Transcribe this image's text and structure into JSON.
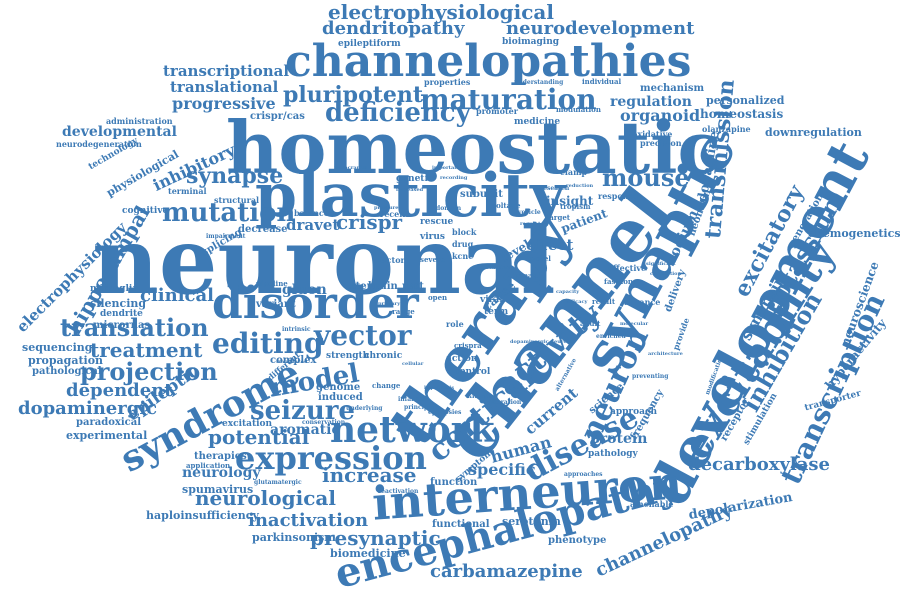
{
  "colors": {
    "word": "#3d7ab5",
    "background": "#ffffff"
  },
  "words": [
    {
      "text": "neuronal",
      "weight": 100,
      "rotation": 0
    },
    {
      "text": "homeostatic",
      "weight": 82,
      "rotation": 0
    },
    {
      "text": "plasticity",
      "weight": 72,
      "rotation": 0
    },
    {
      "text": "channel",
      "weight": 80,
      "rotation": -55
    },
    {
      "text": "therapy",
      "weight": 72,
      "rotation": -55
    },
    {
      "text": "synaptic",
      "weight": 68,
      "rotation": -60
    },
    {
      "text": "development",
      "weight": 66,
      "rotation": -62
    },
    {
      "text": "channelopathies",
      "weight": 58,
      "rotation": 0
    },
    {
      "text": "disorder",
      "weight": 52,
      "rotation": 0
    },
    {
      "text": "interneuron",
      "weight": 50,
      "rotation": -5
    },
    {
      "text": "excitability",
      "weight": 48,
      "rotation": -58
    },
    {
      "text": "encephalopathy",
      "weight": 46,
      "rotation": -15
    },
    {
      "text": "syndrome",
      "weight": 42,
      "rotation": -28
    },
    {
      "text": "network",
      "weight": 42,
      "rotation": 0
    },
    {
      "text": "cortical",
      "weight": 36,
      "rotation": -40
    },
    {
      "text": "activity",
      "weight": 34,
      "rotation": -40
    },
    {
      "text": "neuron",
      "weight": 36,
      "rotation": -65
    },
    {
      "text": "expression",
      "weight": 36,
      "rotation": 0
    },
    {
      "text": "disease",
      "weight": 34,
      "rotation": -30
    },
    {
      "text": "maturation",
      "weight": 32,
      "rotation": 0
    },
    {
      "text": "transcription",
      "weight": 30,
      "rotation": -65
    },
    {
      "text": "inhibition",
      "weight": 28,
      "rotation": -60
    },
    {
      "text": "potassium",
      "weight": 28,
      "rotation": -60
    },
    {
      "text": "excitatory",
      "weight": 26,
      "rotation": -62
    },
    {
      "text": "transmission",
      "weight": 26,
      "rotation": -85
    },
    {
      "text": "deficiency",
      "weight": 30,
      "rotation": 0
    },
    {
      "text": "pluripotent",
      "weight": 28,
      "rotation": 0
    },
    {
      "text": "electrophysiological",
      "weight": 24,
      "rotation": 0
    },
    {
      "text": "dendritopathy",
      "weight": 22,
      "rotation": 0
    },
    {
      "text": "neurodevelopment",
      "weight": 22,
      "rotation": 0
    },
    {
      "text": "mouse",
      "weight": 28,
      "rotation": 0
    },
    {
      "text": "synapse",
      "weight": 24,
      "rotation": 0
    },
    {
      "text": "mutation",
      "weight": 28,
      "rotation": 0
    },
    {
      "text": "translation",
      "weight": 26,
      "rotation": 0
    },
    {
      "text": "editing",
      "weight": 30,
      "rotation": 0
    },
    {
      "text": "vector",
      "weight": 30,
      "rotation": 0
    },
    {
      "text": "model",
      "weight": 30,
      "rotation": -10
    },
    {
      "text": "seizure",
      "weight": 30,
      "rotation": 0
    },
    {
      "text": "projection",
      "weight": 28,
      "rotation": 0
    },
    {
      "text": "treatment",
      "weight": 24,
      "rotation": 0
    },
    {
      "text": "potential",
      "weight": 24,
      "rotation": 0
    },
    {
      "text": "increase",
      "weight": 22,
      "rotation": 0
    },
    {
      "text": "neurological",
      "weight": 22,
      "rotation": 0
    },
    {
      "text": "inactivation",
      "weight": 20,
      "rotation": 0
    },
    {
      "text": "presynaptic",
      "weight": 24,
      "rotation": 0
    },
    {
      "text": "carbamazepine",
      "weight": 22,
      "rotation": 0
    },
    {
      "text": "decarboxylase",
      "weight": 22,
      "rotation": 0
    },
    {
      "text": "channelopathy",
      "weight": 20,
      "rotation": -25
    },
    {
      "text": "depolarization",
      "weight": 14,
      "rotation": -10
    },
    {
      "text": "hippocampal",
      "weight": 24,
      "rotation": -60
    },
    {
      "text": "electrophysiology",
      "weight": 18,
      "rotation": -45
    },
    {
      "text": "dopaminergic",
      "weight": 20,
      "rotation": 0
    },
    {
      "text": "dependent",
      "weight": 20,
      "rotation": 0
    },
    {
      "text": "epileptic",
      "weight": 20,
      "rotation": -35
    },
    {
      "text": "crispr",
      "weight": 22,
      "rotation": 0
    },
    {
      "text": "dravet",
      "weight": 18,
      "rotation": 0
    },
    {
      "text": "clinical",
      "weight": 18,
      "rotation": 0
    },
    {
      "text": "progressive",
      "weight": 18,
      "rotation": 0
    },
    {
      "text": "developmental",
      "weight": 16,
      "rotation": 0
    },
    {
      "text": "inhibitory",
      "weight": 18,
      "rotation": -25
    },
    {
      "text": "transcriptional",
      "weight": 16,
      "rotation": 0
    },
    {
      "text": "translational",
      "weight": 16,
      "rotation": 0
    },
    {
      "text": "organoid",
      "weight": 18,
      "rotation": 0
    },
    {
      "text": "regulation",
      "weight": 16,
      "rotation": 0
    },
    {
      "text": "homeostasis",
      "weight": 14,
      "rotation": 0
    },
    {
      "text": "personalized",
      "weight": 12,
      "rotation": 0
    },
    {
      "text": "downregulation",
      "weight": 12,
      "rotation": 0
    },
    {
      "text": "chemogenetics",
      "weight": 12,
      "rotation": 0
    },
    {
      "text": "neuroscience",
      "weight": 14,
      "rotation": -70
    },
    {
      "text": "hyperactivity",
      "weight": 14,
      "rotation": -50
    },
    {
      "text": "synapsin",
      "weight": 18,
      "rotation": -60
    },
    {
      "text": "sodium",
      "weight": 16,
      "rotation": -65
    },
    {
      "text": "dopamine",
      "weight": 16,
      "rotation": -80
    },
    {
      "text": "human",
      "weight": 18,
      "rotation": -15
    },
    {
      "text": "protein",
      "weight": 18,
      "rotation": 0
    },
    {
      "text": "specific",
      "weight": 18,
      "rotation": 0
    },
    {
      "text": "current",
      "weight": 18,
      "rotation": -40
    },
    {
      "text": "effect",
      "weight": 18,
      "rotation": 0
    },
    {
      "text": "gluon",
      "weight": 16,
      "rotation": 0
    },
    {
      "text": "aromatic",
      "weight": 16,
      "rotation": 0
    },
    {
      "text": "neurology",
      "weight": 16,
      "rotation": 0
    },
    {
      "text": "serotonin",
      "weight": 12,
      "rotation": 0
    },
    {
      "text": "phenotype",
      "weight": 11,
      "rotation": 0
    },
    {
      "text": "parkinsonism",
      "weight": 12,
      "rotation": 0
    },
    {
      "text": "haploinsufficiency",
      "weight": 12,
      "rotation": 0
    },
    {
      "text": "biomedicine",
      "weight": 12,
      "rotation": 0
    },
    {
      "text": "spumavirus",
      "weight": 12,
      "rotation": 0
    },
    {
      "text": "experimental",
      "weight": 12,
      "rotation": 0
    },
    {
      "text": "paradoxical",
      "weight": 11,
      "rotation": 0
    },
    {
      "text": "pathological",
      "weight": 11,
      "rotation": 0
    },
    {
      "text": "propagation",
      "weight": 12,
      "rotation": 0
    },
    {
      "text": "sequencing",
      "weight": 12,
      "rotation": 0
    },
    {
      "text": "silencing",
      "weight": 12,
      "rotation": 0
    },
    {
      "text": "micrornas",
      "weight": 11,
      "rotation": 0
    },
    {
      "text": "microglia",
      "weight": 10,
      "rotation": 0
    },
    {
      "text": "dendrite",
      "weight": 10,
      "rotation": 0
    },
    {
      "text": "cognitive",
      "weight": 10,
      "rotation": 0
    },
    {
      "text": "splicing",
      "weight": 12,
      "rotation": -30
    },
    {
      "text": "physiological",
      "weight": 13,
      "rotation": -30
    },
    {
      "text": "technology",
      "weight": 11,
      "rotation": -30
    },
    {
      "text": "neurodegeneration",
      "weight": 9,
      "rotation": 0
    },
    {
      "text": "administration",
      "weight": 9,
      "rotation": 0
    },
    {
      "text": "crispr/cas",
      "weight": 12,
      "rotation": 0
    },
    {
      "text": "epileptiform",
      "weight": 10,
      "rotation": 0
    },
    {
      "text": "bioimaging",
      "weight": 10,
      "rotation": 0
    },
    {
      "text": "mechanism",
      "weight": 11,
      "rotation": 0
    },
    {
      "text": "olanzapine",
      "weight": 9,
      "rotation": 0
    },
    {
      "text": "insight",
      "weight": 14,
      "rotation": 0
    },
    {
      "text": "patient",
      "weight": 14,
      "rotation": -20
    },
    {
      "text": "rescue",
      "weight": 11,
      "rotation": 0
    },
    {
      "text": "brain",
      "weight": 12,
      "rotation": 0
    },
    {
      "text": "stem",
      "weight": 12,
      "rotation": 0
    },
    {
      "text": "rest",
      "weight": 12,
      "rotation": 0
    },
    {
      "text": "cause",
      "weight": 14,
      "rotation": -40
    },
    {
      "text": "virus",
      "weight": 11,
      "rotation": 0
    },
    {
      "text": "level",
      "weight": 14,
      "rotation": -30
    },
    {
      "text": "variant",
      "weight": 12,
      "rotation": 0
    },
    {
      "text": "complex",
      "weight": 12,
      "rotation": 0
    },
    {
      "text": "genome",
      "weight": 12,
      "rotation": 0
    },
    {
      "text": "induced",
      "weight": 12,
      "rotation": 0
    },
    {
      "text": "strength",
      "weight": 10,
      "rotation": 0
    },
    {
      "text": "chronic",
      "weight": 10,
      "rotation": 0
    },
    {
      "text": "excitation",
      "weight": 10,
      "rotation": 0
    },
    {
      "text": "therapies",
      "weight": 11,
      "rotation": 0
    },
    {
      "text": "function",
      "weight": 11,
      "rotation": 0
    },
    {
      "text": "functional",
      "weight": 11,
      "rotation": 0
    },
    {
      "text": "symptom",
      "weight": 10,
      "rotation": -40
    },
    {
      "text": "pathology",
      "weight": 10,
      "rotation": 0
    },
    {
      "text": "amenable",
      "weight": 9,
      "rotation": 0
    },
    {
      "text": "approach",
      "weight": 10,
      "rotation": 0
    },
    {
      "text": "frequency",
      "weight": 12,
      "rotation": -60
    },
    {
      "text": "receptor",
      "weight": 12,
      "rotation": -60
    },
    {
      "text": "stimulation",
      "weight": 10,
      "rotation": -60
    },
    {
      "text": "transporter",
      "weight": 10,
      "rotation": -15
    },
    {
      "text": "delivery",
      "weight": 12,
      "rotation": -70
    },
    {
      "text": "neonatal",
      "weight": 12,
      "rotation": -70
    },
    {
      "text": "science",
      "weight": 12,
      "rotation": -40
    },
    {
      "text": "generation",
      "weight": 12,
      "rotation": -60
    },
    {
      "text": "subunit",
      "weight": 12,
      "rotation": 0
    },
    {
      "text": "genetic",
      "weight": 11,
      "rotation": 0
    },
    {
      "text": "balance",
      "weight": 9,
      "rotation": 0
    },
    {
      "text": "decrease",
      "weight": 12,
      "rotation": 0
    },
    {
      "text": "medicine",
      "weight": 11,
      "rotation": 0
    },
    {
      "text": "promoter",
      "weight": 9,
      "rotation": 0
    },
    {
      "text": "properties",
      "weight": 9,
      "rotation": 0
    },
    {
      "text": "individual",
      "weight": 8,
      "rotation": 0
    },
    {
      "text": "precision",
      "weight": 9,
      "rotation": 0
    },
    {
      "text": "oxidative",
      "weight": 9,
      "rotation": 0
    },
    {
      "text": "modulation",
      "weight": 8,
      "rotation": 0
    },
    {
      "text": "clamp",
      "weight": 9,
      "rotation": 0
    },
    {
      "text": "response",
      "weight": 9,
      "rotation": 0
    },
    {
      "text": "tropism",
      "weight": 8,
      "rotation": 0
    },
    {
      "text": "structural",
      "weight": 9,
      "rotation": 0
    },
    {
      "text": "terminal",
      "weight": 9,
      "rotation": 0
    },
    {
      "text": "recent",
      "weight": 9,
      "rotation": 0
    },
    {
      "text": "block",
      "weight": 9,
      "rotation": 0
    },
    {
      "text": "drug",
      "weight": 9,
      "rotation": 0
    },
    {
      "text": "kcnc",
      "weight": 9,
      "rotation": 0
    },
    {
      "text": "factor",
      "weight": 9,
      "rotation": 0
    },
    {
      "text": "pipeline",
      "weight": 8,
      "rotation": 0
    },
    {
      "text": "range",
      "weight": 8,
      "rotation": 0
    },
    {
      "text": "role",
      "weight": 9,
      "rotation": 0
    },
    {
      "text": "viral",
      "weight": 10,
      "rotation": 0
    },
    {
      "text": "term",
      "weight": 10,
      "rotation": 0
    },
    {
      "text": "action",
      "weight": 10,
      "rotation": 0
    },
    {
      "text": "control",
      "weight": 10,
      "rotation": 0
    },
    {
      "text": "change",
      "weight": 8,
      "rotation": 0
    },
    {
      "text": "conservation",
      "weight": 7,
      "rotation": 0
    },
    {
      "text": "application",
      "weight": 8,
      "rotation": 0
    },
    {
      "text": "glutamatergic",
      "weight": 7,
      "rotation": 0
    },
    {
      "text": "reactivation",
      "weight": 7,
      "rotation": 0
    },
    {
      "text": "advance",
      "weight": 9,
      "rotation": 0
    },
    {
      "text": "provide",
      "weight": 9,
      "rotation": -70
    },
    {
      "text": "effective",
      "weight": 9,
      "rotation": 0
    },
    {
      "text": "novel",
      "weight": 8,
      "rotation": 0
    },
    {
      "text": "meak",
      "weight": 8,
      "rotation": 0
    },
    {
      "text": "preventing",
      "weight": 7,
      "rotation": 0
    },
    {
      "text": "enriched",
      "weight": 7,
      "rotation": 0
    },
    {
      "text": "modification",
      "weight": 7,
      "rotation": -70
    },
    {
      "text": "fashion",
      "weight": 8,
      "rotation": 0
    },
    {
      "text": "different",
      "weight": 9,
      "rotation": -40
    },
    {
      "text": "infantile",
      "weight": 7,
      "rotation": 0
    },
    {
      "text": "approaches",
      "weight": 7,
      "rotation": 0
    },
    {
      "text": "voltage",
      "weight": 8,
      "rotation": 0
    },
    {
      "text": "vesicle",
      "weight": 7,
      "rotation": 0
    },
    {
      "text": "intrinsic",
      "weight": 7,
      "rotation": 0
    },
    {
      "text": "understanding",
      "weight": 7,
      "rotation": 0
    },
    {
      "text": "impairment",
      "weight": 7,
      "rotation": 0
    },
    {
      "text": "result",
      "weight": 8,
      "rotation": 0
    },
    {
      "text": "adult",
      "weight": 8,
      "rotation": 0
    },
    {
      "text": "research",
      "weight": 7,
      "rotation": 0
    },
    {
      "text": "target",
      "weight": 8,
      "rotation": 0
    },
    {
      "text": "severe",
      "weight": 8,
      "rotation": 0
    },
    {
      "text": "open",
      "weight": 8,
      "rotation": 0
    },
    {
      "text": "crispra",
      "weight": 8,
      "rotation": 0
    },
    {
      "text": "domain",
      "weight": 7,
      "rotation": 0
    },
    {
      "text": "alternative",
      "weight": 7,
      "rotation": -60
    },
    {
      "text": "epilepsies",
      "weight": 7,
      "rotation": 0
    },
    {
      "text": "alteration",
      "weight": 7,
      "rotation": 0
    },
    {
      "text": "underlying",
      "weight": 7,
      "rotation": 0
    },
    {
      "text": "principle",
      "weight": 7,
      "rotation": 0
    },
    {
      "text": "hypothesis",
      "weight": 6,
      "rotation": 0
    },
    {
      "text": "materials",
      "weight": 6,
      "rotation": 0
    },
    {
      "text": "dopaminergic neurons",
      "weight": 6,
      "rotation": 0
    },
    {
      "text": "molecular",
      "weight": 6,
      "rotation": 0
    },
    {
      "text": "important",
      "weight": 6,
      "rotation": 0
    },
    {
      "text": "increased",
      "weight": 6,
      "rotation": 0
    },
    {
      "text": "intracranial",
      "weight": 6,
      "rotation": 0
    },
    {
      "text": "recording",
      "weight": 6,
      "rotation": 0
    },
    {
      "text": "reduction",
      "weight": 6,
      "rotation": 0
    },
    {
      "text": "regulatory",
      "weight": 6,
      "rotation": 0
    },
    {
      "text": "significant",
      "weight": 6,
      "rotation": 0
    },
    {
      "text": "correlation",
      "weight": 6,
      "rotation": 0
    },
    {
      "text": "transduced",
      "weight": 6,
      "rotation": 0
    },
    {
      "text": "architecture",
      "weight": 6,
      "rotation": 0
    },
    {
      "text": "pressure",
      "weight": 6,
      "rotation": 0
    },
    {
      "text": "primary",
      "weight": 6,
      "rotation": 0
    },
    {
      "text": "sensitivity",
      "weight": 6,
      "rotation": 0
    },
    {
      "text": "capacity",
      "weight": 6,
      "rotation": 0
    },
    {
      "text": "efficacy",
      "weight": 6,
      "rotation": 0
    },
    {
      "text": "cellular",
      "weight": 6,
      "rotation": 0
    }
  ]
}
